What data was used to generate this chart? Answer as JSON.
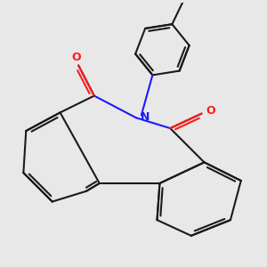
{
  "bg_color": "#e8e8e8",
  "bond_color": "#1a1a1a",
  "n_color": "#1a1aff",
  "o_color": "#ff1a1a",
  "lw": 1.5,
  "dbo": 0.06,
  "figsize": [
    3.0,
    3.0
  ],
  "dpi": 100,
  "xlim": [
    -2.2,
    2.2
  ],
  "ylim": [
    -2.5,
    2.5
  ]
}
